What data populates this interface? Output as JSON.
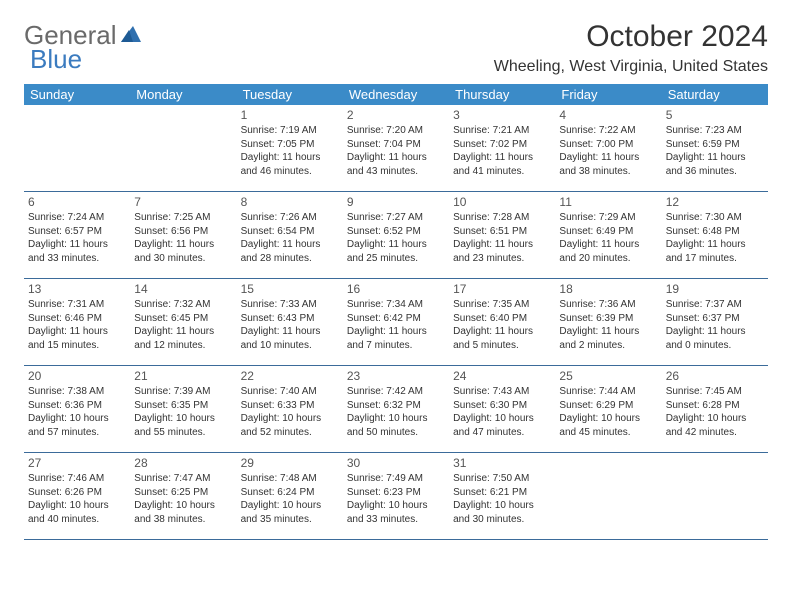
{
  "brand": {
    "part1": "General",
    "part2": "Blue",
    "logo_color": "#2f6fae"
  },
  "title": "October 2024",
  "location": "Wheeling, West Virginia, United States",
  "colors": {
    "header_bg": "#3b8bc8",
    "header_text": "#ffffff",
    "row_border": "#3b6b9a",
    "text": "#333333",
    "daynum": "#555555"
  },
  "dow": [
    "Sunday",
    "Monday",
    "Tuesday",
    "Wednesday",
    "Thursday",
    "Friday",
    "Saturday"
  ],
  "weeks": [
    [
      null,
      null,
      {
        "n": "1",
        "sr": "7:19 AM",
        "ss": "7:05 PM",
        "dh": "11",
        "dm": "46"
      },
      {
        "n": "2",
        "sr": "7:20 AM",
        "ss": "7:04 PM",
        "dh": "11",
        "dm": "43"
      },
      {
        "n": "3",
        "sr": "7:21 AM",
        "ss": "7:02 PM",
        "dh": "11",
        "dm": "41"
      },
      {
        "n": "4",
        "sr": "7:22 AM",
        "ss": "7:00 PM",
        "dh": "11",
        "dm": "38"
      },
      {
        "n": "5",
        "sr": "7:23 AM",
        "ss": "6:59 PM",
        "dh": "11",
        "dm": "36"
      }
    ],
    [
      {
        "n": "6",
        "sr": "7:24 AM",
        "ss": "6:57 PM",
        "dh": "11",
        "dm": "33"
      },
      {
        "n": "7",
        "sr": "7:25 AM",
        "ss": "6:56 PM",
        "dh": "11",
        "dm": "30"
      },
      {
        "n": "8",
        "sr": "7:26 AM",
        "ss": "6:54 PM",
        "dh": "11",
        "dm": "28"
      },
      {
        "n": "9",
        "sr": "7:27 AM",
        "ss": "6:52 PM",
        "dh": "11",
        "dm": "25"
      },
      {
        "n": "10",
        "sr": "7:28 AM",
        "ss": "6:51 PM",
        "dh": "11",
        "dm": "23"
      },
      {
        "n": "11",
        "sr": "7:29 AM",
        "ss": "6:49 PM",
        "dh": "11",
        "dm": "20"
      },
      {
        "n": "12",
        "sr": "7:30 AM",
        "ss": "6:48 PM",
        "dh": "11",
        "dm": "17"
      }
    ],
    [
      {
        "n": "13",
        "sr": "7:31 AM",
        "ss": "6:46 PM",
        "dh": "11",
        "dm": "15"
      },
      {
        "n": "14",
        "sr": "7:32 AM",
        "ss": "6:45 PM",
        "dh": "11",
        "dm": "12"
      },
      {
        "n": "15",
        "sr": "7:33 AM",
        "ss": "6:43 PM",
        "dh": "11",
        "dm": "10"
      },
      {
        "n": "16",
        "sr": "7:34 AM",
        "ss": "6:42 PM",
        "dh": "11",
        "dm": "7"
      },
      {
        "n": "17",
        "sr": "7:35 AM",
        "ss": "6:40 PM",
        "dh": "11",
        "dm": "5"
      },
      {
        "n": "18",
        "sr": "7:36 AM",
        "ss": "6:39 PM",
        "dh": "11",
        "dm": "2"
      },
      {
        "n": "19",
        "sr": "7:37 AM",
        "ss": "6:37 PM",
        "dh": "11",
        "dm": "0"
      }
    ],
    [
      {
        "n": "20",
        "sr": "7:38 AM",
        "ss": "6:36 PM",
        "dh": "10",
        "dm": "57"
      },
      {
        "n": "21",
        "sr": "7:39 AM",
        "ss": "6:35 PM",
        "dh": "10",
        "dm": "55"
      },
      {
        "n": "22",
        "sr": "7:40 AM",
        "ss": "6:33 PM",
        "dh": "10",
        "dm": "52"
      },
      {
        "n": "23",
        "sr": "7:42 AM",
        "ss": "6:32 PM",
        "dh": "10",
        "dm": "50"
      },
      {
        "n": "24",
        "sr": "7:43 AM",
        "ss": "6:30 PM",
        "dh": "10",
        "dm": "47"
      },
      {
        "n": "25",
        "sr": "7:44 AM",
        "ss": "6:29 PM",
        "dh": "10",
        "dm": "45"
      },
      {
        "n": "26",
        "sr": "7:45 AM",
        "ss": "6:28 PM",
        "dh": "10",
        "dm": "42"
      }
    ],
    [
      {
        "n": "27",
        "sr": "7:46 AM",
        "ss": "6:26 PM",
        "dh": "10",
        "dm": "40"
      },
      {
        "n": "28",
        "sr": "7:47 AM",
        "ss": "6:25 PM",
        "dh": "10",
        "dm": "38"
      },
      {
        "n": "29",
        "sr": "7:48 AM",
        "ss": "6:24 PM",
        "dh": "10",
        "dm": "35"
      },
      {
        "n": "30",
        "sr": "7:49 AM",
        "ss": "6:23 PM",
        "dh": "10",
        "dm": "33"
      },
      {
        "n": "31",
        "sr": "7:50 AM",
        "ss": "6:21 PM",
        "dh": "10",
        "dm": "30"
      },
      null,
      null
    ]
  ],
  "labels": {
    "sunrise": "Sunrise:",
    "sunset": "Sunset:",
    "daylight": "Daylight:",
    "hours": "hours",
    "and": "and",
    "minutes": "minutes."
  }
}
